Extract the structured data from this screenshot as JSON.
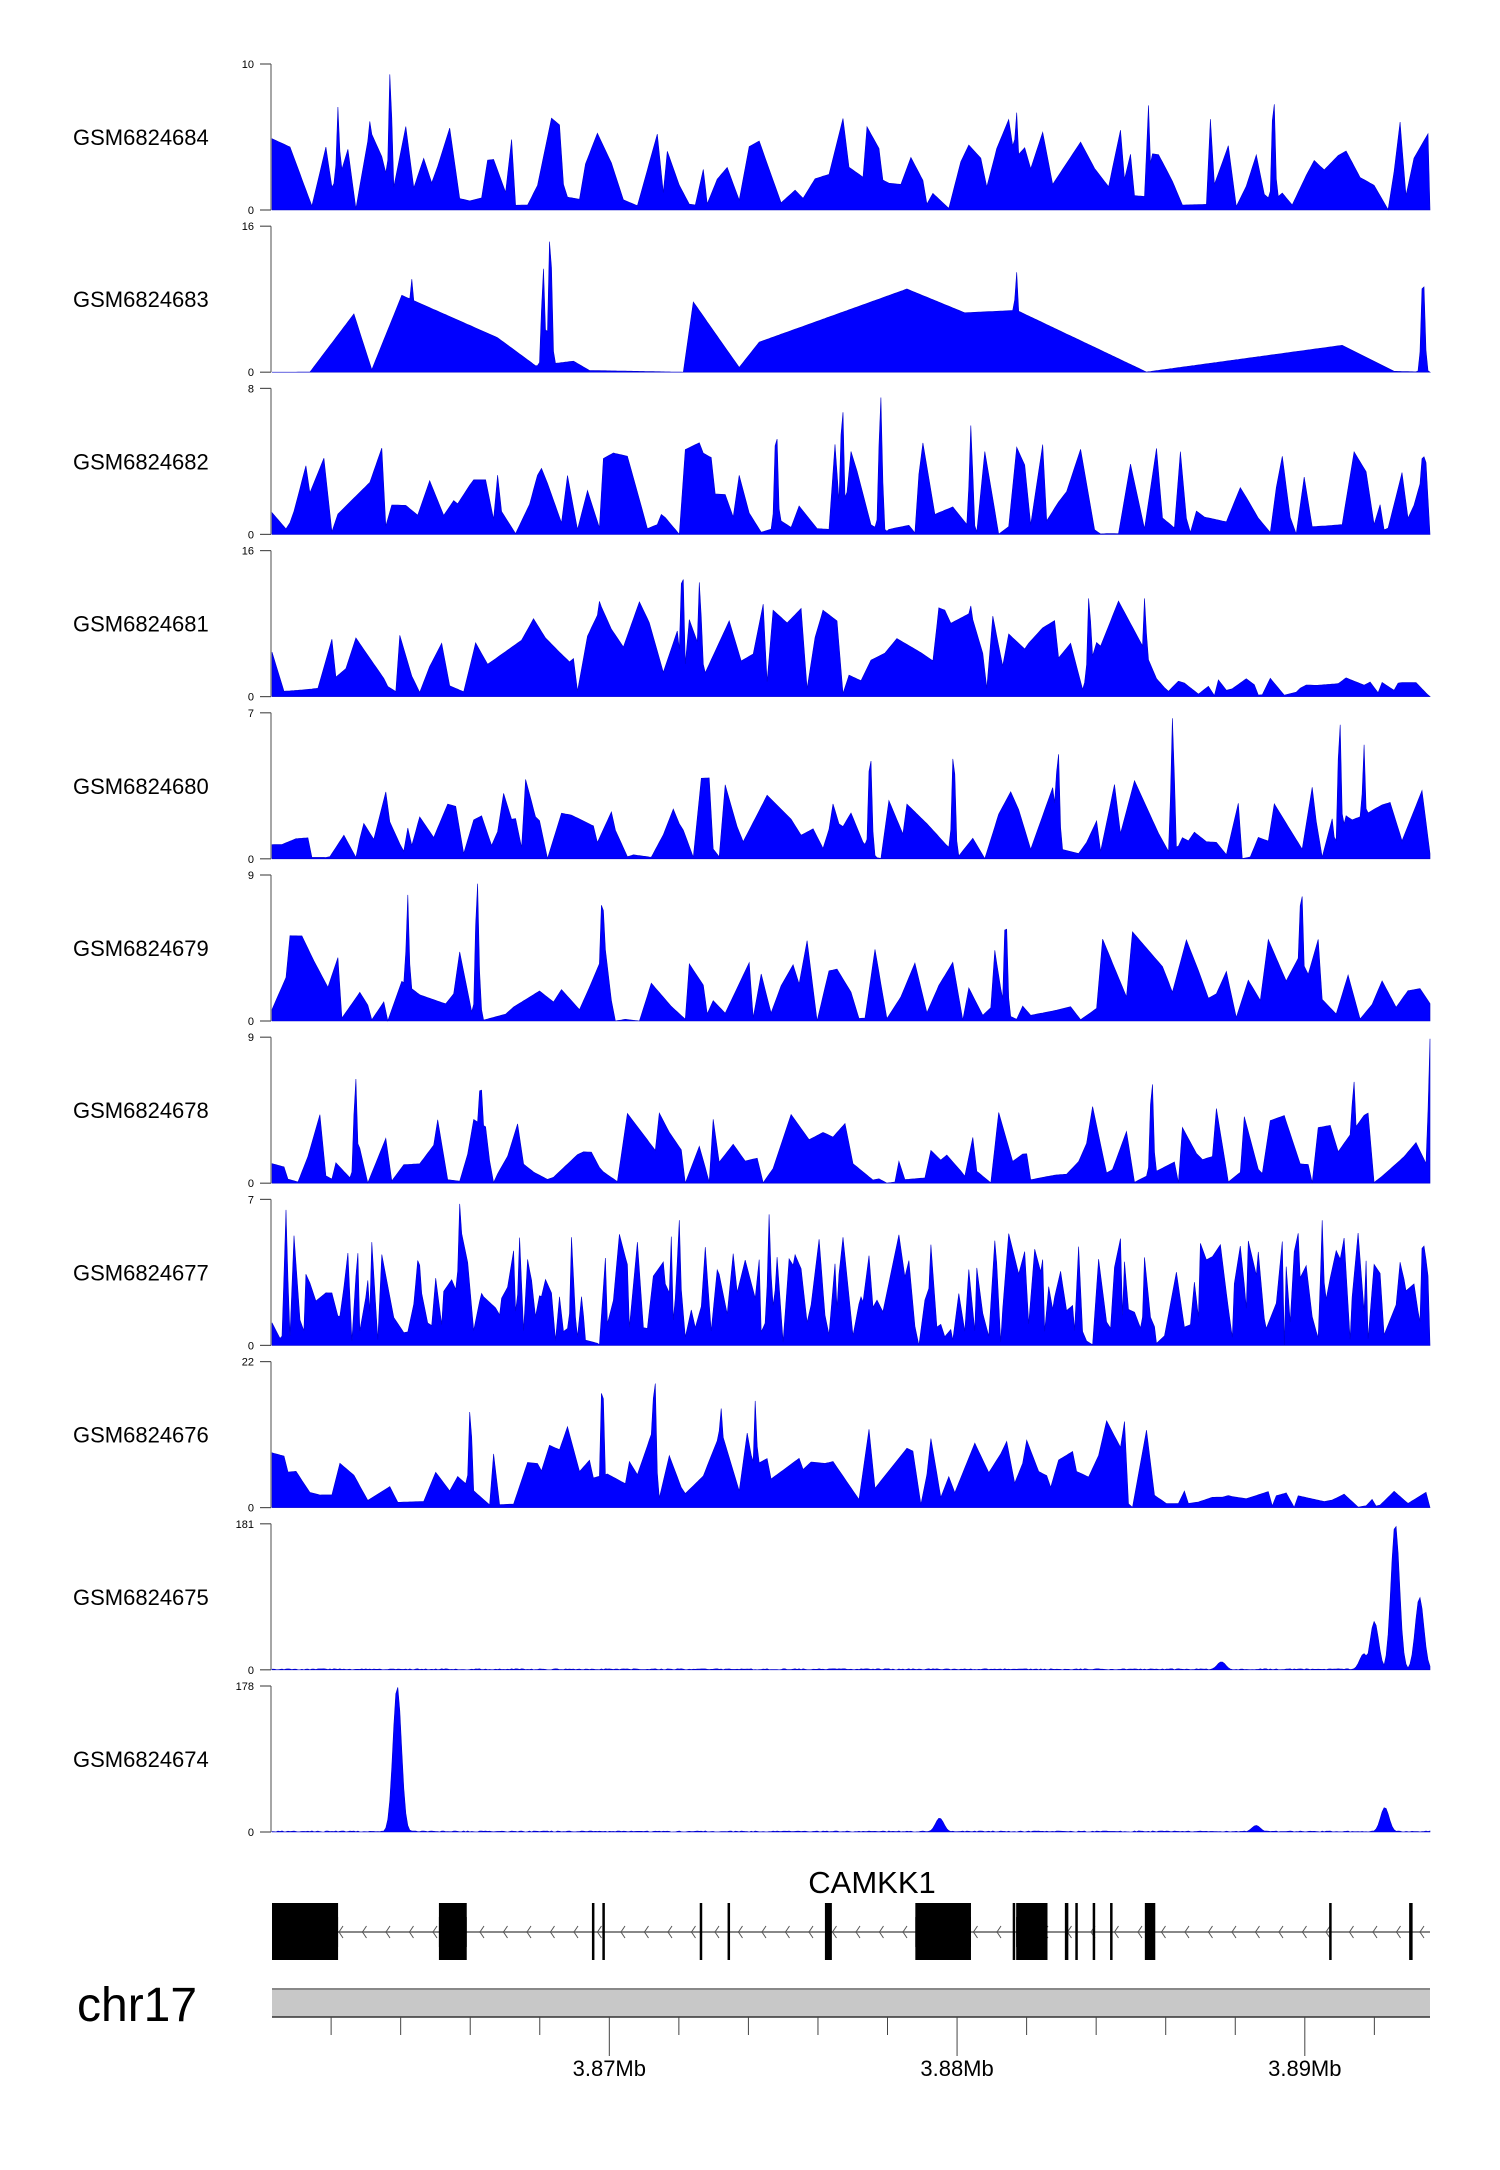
{
  "chart_data": {
    "type": "area",
    "title": "",
    "chromosome": "chr17",
    "xlim_mb": [
      3.8603,
      3.8936
    ],
    "x_ticks": [
      "3.87Mb",
      "3.88Mb",
      "3.89Mb"
    ],
    "x_tick_values_mb": [
      3.87,
      3.88,
      3.89
    ],
    "minor_tick_step_kb": 2,
    "fill_color": "#0000FF",
    "series": [
      {
        "name": "GSM6824684",
        "ymax": 10,
        "ymax_label": "10",
        "ymin_label": "0",
        "style": "spiky",
        "seed": 11,
        "level": 0.45,
        "peaks": [
          [
            3.8637,
            9.6
          ],
          [
            3.8631,
            6.3
          ],
          [
            3.8622,
            7.1
          ],
          [
            3.8891,
            8.0
          ],
          [
            3.8855,
            7.2
          ],
          [
            3.8817,
            7.0
          ]
        ]
      },
      {
        "name": "GSM6824683",
        "ymax": 16,
        "ymax_label": "16",
        "ymin_label": "0",
        "style": "sparse",
        "seed": 23,
        "level": 0.45,
        "peaks": [
          [
            3.8683,
            15.5
          ],
          [
            3.8681,
            11.5
          ],
          [
            3.8643,
            11.0
          ],
          [
            3.8817,
            11.5
          ],
          [
            3.8934,
            11.0
          ]
        ]
      },
      {
        "name": "GSM6824682",
        "ymax": 8,
        "ymax_label": "8",
        "ymin_label": "0",
        "style": "spiky",
        "seed": 37,
        "level": 0.45,
        "peaks": [
          [
            3.8778,
            7.7
          ],
          [
            3.8767,
            7.3
          ],
          [
            3.8748,
            6.0
          ],
          [
            3.8804,
            6.0
          ],
          [
            3.8934,
            5.0
          ]
        ]
      },
      {
        "name": "GSM6824681",
        "ymax": 16,
        "ymax_label": "16",
        "ymin_label": "0",
        "style": "broad",
        "seed": 41,
        "level": 0.55,
        "peaks": [
          [
            3.8721,
            15.0
          ],
          [
            3.8726,
            13.0
          ],
          [
            3.8697,
            11.0
          ],
          [
            3.8838,
            11.5
          ],
          [
            3.8854,
            11.0
          ],
          [
            3.8804,
            10.0
          ]
        ]
      },
      {
        "name": "GSM6824680",
        "ymax": 7,
        "ymax_label": "7",
        "ymin_label": "0",
        "style": "spiky",
        "seed": 53,
        "level": 0.4,
        "peaks": [
          [
            3.8862,
            6.8
          ],
          [
            3.891,
            6.8
          ],
          [
            3.8829,
            5.5
          ],
          [
            3.8917,
            5.5
          ],
          [
            3.8775,
            5.3
          ],
          [
            3.8799,
            5.3
          ]
        ]
      },
      {
        "name": "GSM6824679",
        "ymax": 9,
        "ymax_label": "9",
        "ymin_label": "0",
        "style": "spiky",
        "seed": 67,
        "level": 0.45,
        "peaks": [
          [
            3.8662,
            8.8
          ],
          [
            3.8899,
            8.8
          ],
          [
            3.8698,
            8.3
          ],
          [
            3.8642,
            7.8
          ],
          [
            3.8814,
            6.7
          ]
        ]
      },
      {
        "name": "GSM6824678",
        "ymax": 9,
        "ymax_label": "9",
        "ymin_label": "0",
        "style": "spiky",
        "seed": 71,
        "level": 0.38,
        "peaks": [
          [
            3.8936,
            8.9
          ],
          [
            3.8663,
            6.8
          ],
          [
            3.8627,
            6.6
          ],
          [
            3.8856,
            6.6
          ],
          [
            3.8914,
            6.7
          ]
        ]
      },
      {
        "name": "GSM6824677",
        "ymax": 7,
        "ymax_label": "7",
        "ymin_label": "0",
        "style": "dense",
        "seed": 83,
        "level": 0.55,
        "peaks": [
          [
            3.8657,
            6.8
          ],
          [
            3.8607,
            6.5
          ],
          [
            3.8934,
            5.6
          ],
          [
            3.8905,
            6.0
          ],
          [
            3.8746,
            6.3
          ],
          [
            3.872,
            6.2
          ]
        ]
      },
      {
        "name": "GSM6824676",
        "ymax": 22,
        "ymax_label": "22",
        "ymin_label": "0",
        "style": "broad",
        "seed": 97,
        "level": 0.5,
        "peaks": [
          [
            3.8713,
            21.0
          ],
          [
            3.8698,
            20.0
          ],
          [
            3.8742,
            16.2
          ],
          [
            3.866,
            15.2
          ],
          [
            3.8732,
            16.0
          ]
        ]
      },
      {
        "name": "GSM6824675",
        "ymax": 181,
        "ymax_label": "181",
        "ymin_label": "0",
        "style": "flat",
        "seed": 101,
        "level": 0.012,
        "peaks": [
          [
            3.8926,
            181
          ],
          [
            3.8933,
            90
          ],
          [
            3.892,
            60
          ],
          [
            3.8917,
            20
          ],
          [
            3.8876,
            10
          ]
        ]
      },
      {
        "name": "GSM6824674",
        "ymax": 178,
        "ymax_label": "178",
        "ymin_label": "0",
        "style": "flat",
        "seed": 113,
        "level": 0.012,
        "peaks": [
          [
            3.8639,
            178
          ],
          [
            3.8795,
            17
          ],
          [
            3.8923,
            30
          ],
          [
            3.8886,
            8
          ]
        ]
      }
    ]
  },
  "gene_track": {
    "gene_name": "CAMKK1",
    "strand": "-",
    "exons_mb": [
      [
        3.8603,
        3.8622
      ],
      [
        3.8651,
        3.8659
      ],
      [
        3.8695,
        3.86953
      ],
      [
        3.8698,
        3.86983
      ],
      [
        3.8726,
        3.87263
      ],
      [
        3.8734,
        3.87343
      ],
      [
        3.8762,
        3.8764
      ],
      [
        3.8788,
        3.8804
      ],
      [
        3.8816,
        3.88163
      ],
      [
        3.8817,
        3.8826
      ],
      [
        3.8823,
        3.88233
      ],
      [
        3.88247,
        3.8826
      ],
      [
        3.8831,
        3.8832
      ],
      [
        3.8834,
        3.88343
      ],
      [
        3.8839,
        3.88393
      ],
      [
        3.8844,
        3.88443
      ],
      [
        3.8854,
        3.8857
      ],
      [
        3.8907,
        3.89073
      ],
      [
        3.893,
        3.8931
      ]
    ],
    "utr_mb": [
      [
        3.8603,
        3.8622
      ],
      [
        3.8651,
        3.8659
      ],
      [
        3.8788,
        3.8804
      ],
      [
        3.8817,
        3.8826
      ]
    ]
  }
}
